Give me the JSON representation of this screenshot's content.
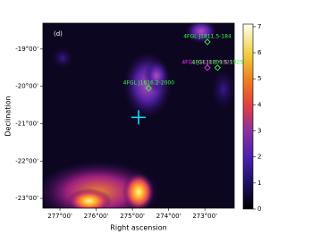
{
  "chart_data": {
    "type": "sky-map",
    "title": "(d)",
    "x_label": "Right ascension",
    "y_label": "Declination",
    "xlim": [
      277.47,
      272.19
    ],
    "ylim": [
      -23.26,
      -18.31
    ],
    "xticks": [
      {
        "value": 277,
        "label": "277°00'"
      },
      {
        "value": 276,
        "label": "276°00'"
      },
      {
        "value": 275,
        "label": "275°00'"
      },
      {
        "value": 274,
        "label": "274°00'"
      },
      {
        "value": 273,
        "label": "273°00'"
      }
    ],
    "yticks": [
      {
        "value": -19,
        "label": "-19°00'"
      },
      {
        "value": -20,
        "label": "-20°00'"
      },
      {
        "value": -21,
        "label": "-21°00'"
      },
      {
        "value": -22,
        "label": "-22°00'"
      },
      {
        "value": -23,
        "label": "-23°00'"
      }
    ],
    "clim": [
      0,
      7.1
    ],
    "cticks": [
      0,
      1,
      2,
      3,
      4,
      5,
      6,
      7
    ],
    "sources": [
      {
        "name": "4FGL J1811.5-184",
        "x": 272.93,
        "y": -18.81,
        "color": "#33ff33"
      },
      {
        "name": "4FGL J1816.2-2000",
        "x": 274.55,
        "y": -20.05,
        "color": "#33ff33"
      },
      {
        "name": "4FGL J1810.3-1925",
        "x": 272.93,
        "y": -19.5,
        "color": "#ff33ff"
      },
      {
        "name": "4FGL J1809.5-1925",
        "x": 272.65,
        "y": -19.5,
        "color": "#33ff33"
      }
    ],
    "target": {
      "x": 274.83,
      "y": -20.83,
      "color": "#00e5ff"
    }
  }
}
